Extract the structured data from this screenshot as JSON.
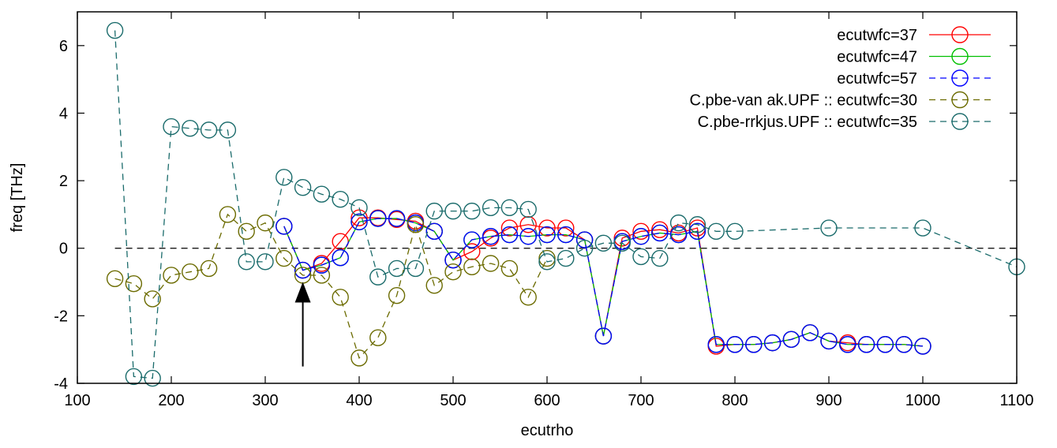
{
  "chart_data": {
    "type": "line",
    "title": "",
    "xlabel": "ecutrho",
    "ylabel": "freq [THz]",
    "xlim": [
      100,
      1100
    ],
    "ylim": [
      -4,
      7
    ],
    "xticks": [
      100,
      200,
      300,
      400,
      500,
      600,
      700,
      800,
      900,
      1000,
      1100
    ],
    "yticks": [
      -4,
      -2,
      0,
      2,
      4,
      6
    ],
    "grid": false,
    "legend_position": "top-right",
    "reference_line": {
      "y": 0,
      "style": "dashed",
      "color": "#000000"
    },
    "annotation": {
      "type": "arrow",
      "x": 340,
      "y_from": -3.5,
      "y_to": -1.0,
      "color": "#000000"
    },
    "series": [
      {
        "name": "ecutwfc=37",
        "color": "#ff0000",
        "dash": "solid",
        "x": [
          320,
          340,
          360,
          380,
          400,
          420,
          440,
          460,
          480,
          500,
          520,
          540,
          560,
          580,
          600,
          620,
          640,
          660,
          680,
          700,
          720,
          740,
          760,
          780,
          800,
          820,
          840,
          860,
          880,
          900,
          920,
          940,
          960,
          980,
          1000
        ],
        "y": [
          0.65,
          -0.65,
          -0.45,
          0.2,
          0.9,
          0.9,
          0.85,
          0.8,
          0.5,
          -0.35,
          -0.1,
          0.3,
          0.6,
          0.7,
          0.6,
          0.6,
          0.25,
          -2.6,
          0.3,
          0.5,
          0.55,
          0.45,
          0.6,
          -2.9,
          -2.85,
          -2.85,
          -2.8,
          -2.7,
          -2.5,
          -2.75,
          -2.8,
          -2.85,
          -2.85,
          -2.85,
          -2.9
        ]
      },
      {
        "name": "ecutwfc=47",
        "color": "#00c000",
        "dash": "solid",
        "x": [
          320,
          340,
          360,
          380,
          400,
          420,
          440,
          460,
          480,
          500,
          520,
          540,
          560,
          580,
          600,
          620,
          640,
          660,
          680,
          700,
          720,
          740,
          760,
          780,
          800,
          820,
          840,
          860,
          880,
          900,
          920,
          940,
          960,
          980,
          1000
        ],
        "y": [
          0.65,
          -0.65,
          -0.5,
          -0.28,
          0.78,
          0.88,
          0.88,
          0.75,
          0.5,
          -0.35,
          0.25,
          0.35,
          0.4,
          0.35,
          0.4,
          0.4,
          0.25,
          -2.6,
          0.2,
          0.35,
          0.45,
          0.4,
          0.5,
          -2.85,
          -2.85,
          -2.85,
          -2.8,
          -2.7,
          -2.5,
          -2.75,
          -2.85,
          -2.85,
          -2.85,
          -2.85,
          -2.9
        ]
      },
      {
        "name": "ecutwfc=57",
        "color": "#0000ff",
        "dash": "dashed",
        "x": [
          320,
          340,
          360,
          380,
          400,
          420,
          440,
          460,
          480,
          500,
          520,
          540,
          560,
          580,
          600,
          620,
          640,
          660,
          680,
          700,
          720,
          740,
          760,
          780,
          800,
          820,
          840,
          860,
          880,
          900,
          920,
          940,
          960,
          980,
          1000
        ],
        "y": [
          0.65,
          -0.65,
          -0.5,
          -0.28,
          0.78,
          0.88,
          0.88,
          0.75,
          0.5,
          -0.35,
          0.25,
          0.35,
          0.4,
          0.35,
          0.4,
          0.4,
          0.25,
          -2.6,
          0.2,
          0.35,
          0.45,
          0.4,
          0.5,
          -2.85,
          -2.85,
          -2.85,
          -2.8,
          -2.7,
          -2.5,
          -2.75,
          -2.85,
          -2.85,
          -2.85,
          -2.85,
          -2.9
        ]
      },
      {
        "name": "C.pbe-van ak.UPF :: ecutwfc=30",
        "color": "#6b6b00",
        "dash": "dashed",
        "x": [
          140,
          160,
          180,
          200,
          220,
          240,
          260,
          280,
          300,
          320,
          340,
          360,
          380,
          400,
          420,
          440,
          460,
          480,
          500,
          520,
          540,
          560,
          580,
          600
        ],
        "y": [
          -0.9,
          -1.05,
          -1.5,
          -0.8,
          -0.7,
          -0.6,
          1.0,
          0.5,
          0.75,
          -0.3,
          -0.8,
          -0.8,
          -1.45,
          -3.25,
          -2.65,
          -1.4,
          0.7,
          -1.1,
          -0.7,
          -0.55,
          -0.45,
          -0.6,
          -1.45,
          -0.3
        ]
      },
      {
        "name": "C.pbe-rrkjus.UPF :: ecutwfc=35",
        "color": "#1a6b6b",
        "dash": "dashed",
        "x": [
          140,
          160,
          180,
          200,
          220,
          240,
          260,
          280,
          300,
          320,
          340,
          360,
          380,
          400,
          420,
          440,
          460,
          480,
          500,
          520,
          540,
          560,
          580,
          600,
          620,
          640,
          660,
          680,
          700,
          720,
          740,
          760,
          780,
          800,
          900,
          1000,
          1100
        ],
        "y": [
          6.45,
          -3.8,
          -3.85,
          3.6,
          3.55,
          3.5,
          3.5,
          -0.4,
          -0.4,
          2.1,
          1.8,
          1.6,
          1.45,
          1.2,
          -0.85,
          -0.6,
          -0.6,
          1.1,
          1.1,
          1.1,
          1.2,
          1.2,
          1.15,
          -0.4,
          -0.3,
          0.0,
          0.15,
          0.15,
          -0.25,
          -0.3,
          0.75,
          0.7,
          0.5,
          0.5,
          0.6,
          0.6,
          -0.55
        ]
      }
    ]
  }
}
